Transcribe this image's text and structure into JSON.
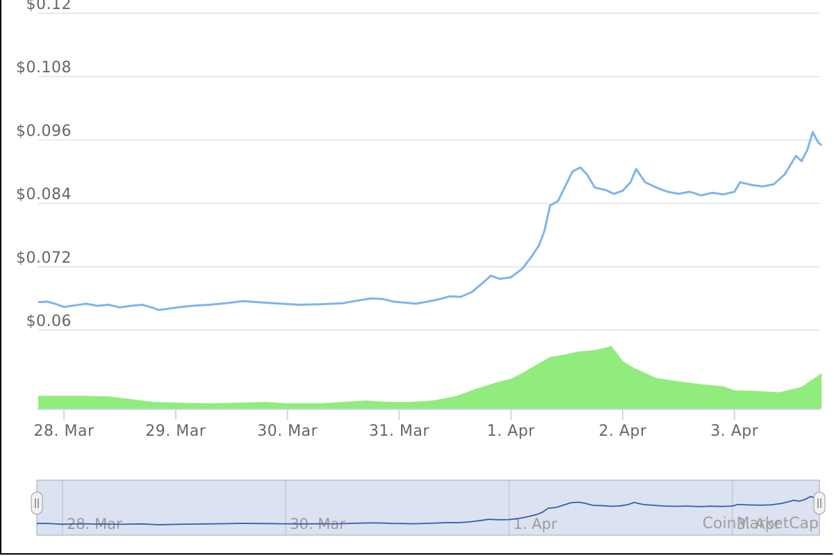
{
  "chart_data": {
    "type": "line",
    "xunit": "days since 28 Mar (00:00)",
    "y_axis": {
      "ticks": [
        0.06,
        0.072,
        0.084,
        0.096,
        0.108,
        0.12
      ],
      "tick_labels": [
        "$0.06",
        "$0.072",
        "$0.084",
        "$0.096",
        "$0.108",
        "$0.12"
      ],
      "range": [
        0.06,
        0.12
      ]
    },
    "x_axis": {
      "ticks": [
        0,
        1,
        2,
        3,
        4,
        5,
        6
      ],
      "tick_labels": [
        "28. Mar",
        "29. Mar",
        "30. Mar",
        "31. Mar",
        "1. Apr",
        "2. Apr",
        "3. Apr"
      ],
      "range": [
        -0.23,
        6.78
      ]
    },
    "grid": true,
    "series": [
      {
        "kind": "price-line",
        "color": "#7cb5ec",
        "points": [
          [
            -0.23,
            0.0653
          ],
          [
            -0.15,
            0.0654
          ],
          [
            -0.08,
            0.065
          ],
          [
            0.0,
            0.0644
          ],
          [
            0.1,
            0.0647
          ],
          [
            0.2,
            0.065
          ],
          [
            0.3,
            0.0646
          ],
          [
            0.4,
            0.0648
          ],
          [
            0.5,
            0.0643
          ],
          [
            0.6,
            0.0646
          ],
          [
            0.7,
            0.0648
          ],
          [
            0.8,
            0.0642
          ],
          [
            0.85,
            0.0638
          ],
          [
            0.95,
            0.0641
          ],
          [
            1.05,
            0.0644
          ],
          [
            1.15,
            0.0646
          ],
          [
            1.3,
            0.0648
          ],
          [
            1.45,
            0.0651
          ],
          [
            1.6,
            0.0655
          ],
          [
            1.8,
            0.0652
          ],
          [
            1.95,
            0.065
          ],
          [
            2.1,
            0.0648
          ],
          [
            2.3,
            0.0649
          ],
          [
            2.5,
            0.0651
          ],
          [
            2.6,
            0.0655
          ],
          [
            2.75,
            0.066
          ],
          [
            2.85,
            0.0659
          ],
          [
            2.95,
            0.0654
          ],
          [
            3.05,
            0.0652
          ],
          [
            3.15,
            0.065
          ],
          [
            3.25,
            0.0654
          ],
          [
            3.35,
            0.0658
          ],
          [
            3.45,
            0.0664
          ],
          [
            3.55,
            0.0663
          ],
          [
            3.65,
            0.0672
          ],
          [
            3.75,
            0.069
          ],
          [
            3.82,
            0.0703
          ],
          [
            3.9,
            0.0697
          ],
          [
            4.0,
            0.07
          ],
          [
            4.1,
            0.0716
          ],
          [
            4.18,
            0.0738
          ],
          [
            4.25,
            0.076
          ],
          [
            4.3,
            0.0788
          ],
          [
            4.35,
            0.0836
          ],
          [
            4.42,
            0.0844
          ],
          [
            4.48,
            0.087
          ],
          [
            4.55,
            0.09
          ],
          [
            4.62,
            0.0908
          ],
          [
            4.68,
            0.0895
          ],
          [
            4.75,
            0.087
          ],
          [
            4.85,
            0.0865
          ],
          [
            4.92,
            0.0858
          ],
          [
            5.0,
            0.0864
          ],
          [
            5.07,
            0.088
          ],
          [
            5.12,
            0.0905
          ],
          [
            5.2,
            0.088
          ],
          [
            5.3,
            0.087
          ],
          [
            5.4,
            0.0862
          ],
          [
            5.5,
            0.0858
          ],
          [
            5.6,
            0.0862
          ],
          [
            5.7,
            0.0855
          ],
          [
            5.8,
            0.086
          ],
          [
            5.9,
            0.0857
          ],
          [
            6.0,
            0.0862
          ],
          [
            6.05,
            0.088
          ],
          [
            6.15,
            0.0875
          ],
          [
            6.25,
            0.0872
          ],
          [
            6.35,
            0.0876
          ],
          [
            6.45,
            0.0895
          ],
          [
            6.55,
            0.093
          ],
          [
            6.6,
            0.092
          ],
          [
            6.65,
            0.094
          ],
          [
            6.7,
            0.0975
          ],
          [
            6.75,
            0.0955
          ],
          [
            6.78,
            0.095
          ]
        ]
      }
    ],
    "volume": {
      "kind": "area",
      "color": "#90ed7d",
      "points": [
        [
          -0.23,
          0.19
        ],
        [
          0.0,
          0.19
        ],
        [
          0.2,
          0.19
        ],
        [
          0.4,
          0.18
        ],
        [
          0.6,
          0.14
        ],
        [
          0.8,
          0.1
        ],
        [
          1.0,
          0.09
        ],
        [
          1.3,
          0.08
        ],
        [
          1.6,
          0.09
        ],
        [
          1.8,
          0.1
        ],
        [
          2.0,
          0.08
        ],
        [
          2.3,
          0.08
        ],
        [
          2.5,
          0.1
        ],
        [
          2.7,
          0.12
        ],
        [
          2.9,
          0.1
        ],
        [
          3.1,
          0.1
        ],
        [
          3.3,
          0.12
        ],
        [
          3.5,
          0.18
        ],
        [
          3.7,
          0.3
        ],
        [
          3.9,
          0.4
        ],
        [
          4.0,
          0.44
        ],
        [
          4.1,
          0.52
        ],
        [
          4.2,
          0.62
        ],
        [
          4.35,
          0.76
        ],
        [
          4.5,
          0.8
        ],
        [
          4.6,
          0.84
        ],
        [
          4.75,
          0.86
        ],
        [
          4.9,
          0.92
        ],
        [
          5.0,
          0.7
        ],
        [
          5.1,
          0.6
        ],
        [
          5.3,
          0.45
        ],
        [
          5.5,
          0.4
        ],
        [
          5.7,
          0.36
        ],
        [
          5.9,
          0.33
        ],
        [
          6.0,
          0.27
        ],
        [
          6.2,
          0.26
        ],
        [
          6.4,
          0.24
        ],
        [
          6.6,
          0.32
        ],
        [
          6.78,
          0.52
        ]
      ]
    },
    "navigator": {
      "tick_labels": [
        "28. Mar",
        "30. Mar",
        "1. Apr",
        "3. Apr"
      ],
      "tick_values": [
        0,
        2,
        4,
        6
      ]
    },
    "watermark": "CoinMarketCap"
  }
}
